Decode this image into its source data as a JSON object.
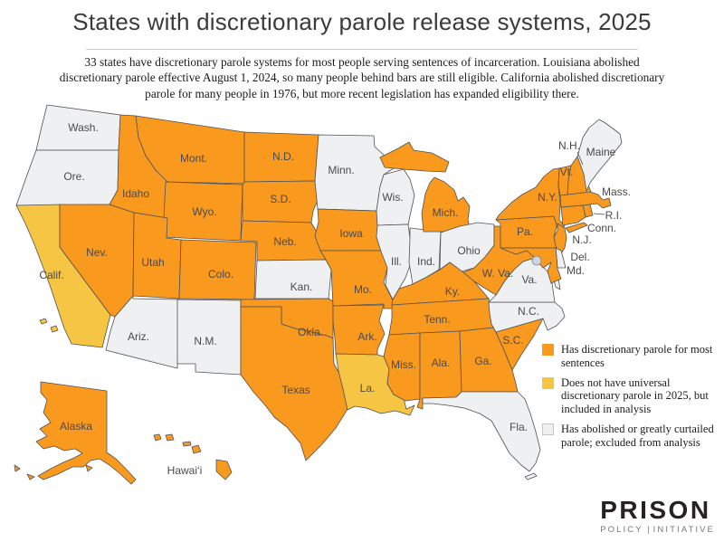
{
  "title": "States with discretionary parole release systems, 2025",
  "subtitle": "33 states have discretionary parole systems for most people serving sentences of incarceration. Louisiana abolished discretionary parole effective August 1, 2024, so many people behind bars are still eligible. California abolished discretionary parole for many people in 1976, but more recent legislation has expanded eligibility there.",
  "legend": {
    "items": [
      {
        "category": "parole",
        "color": "#F9991E",
        "label": "Has discretionary parole for most sentences"
      },
      {
        "category": "partial",
        "color": "#F6C544",
        "label": "Does not have universal discretionary parole in 2025, but included in analysis"
      },
      {
        "category": "excluded",
        "color": "#EFF0F1",
        "label": "Has abolished or greatly curtailed parole; excluded from analysis"
      }
    ]
  },
  "map": {
    "border_color": "#515154",
    "label_color": "#4a4a4c",
    "dc_fill": "#CBD5DB",
    "dc_stroke": "#7c8b96",
    "states": [
      {
        "id": "WA",
        "label": "Wash.",
        "category": "excluded"
      },
      {
        "id": "OR",
        "label": "Ore.",
        "category": "excluded"
      },
      {
        "id": "CA",
        "label": "Calif.",
        "category": "partial"
      },
      {
        "id": "NV",
        "label": "Nev.",
        "category": "parole"
      },
      {
        "id": "ID",
        "label": "Idaho",
        "category": "parole"
      },
      {
        "id": "MT",
        "label": "Mont.",
        "category": "parole"
      },
      {
        "id": "WY",
        "label": "Wyo.",
        "category": "parole"
      },
      {
        "id": "UT",
        "label": "Utah",
        "category": "parole"
      },
      {
        "id": "CO",
        "label": "Colo.",
        "category": "parole"
      },
      {
        "id": "AZ",
        "label": "Ariz.",
        "category": "excluded"
      },
      {
        "id": "NM",
        "label": "N.M.",
        "category": "excluded"
      },
      {
        "id": "ND",
        "label": "N.D.",
        "category": "parole"
      },
      {
        "id": "SD",
        "label": "S.D.",
        "category": "parole"
      },
      {
        "id": "NE",
        "label": "Neb.",
        "category": "parole"
      },
      {
        "id": "KS",
        "label": "Kan.",
        "category": "excluded"
      },
      {
        "id": "OK",
        "label": "Okla.",
        "category": "parole"
      },
      {
        "id": "TX",
        "label": "Texas",
        "category": "parole"
      },
      {
        "id": "MN",
        "label": "Minn.",
        "category": "excluded"
      },
      {
        "id": "IA",
        "label": "Iowa",
        "category": "parole"
      },
      {
        "id": "MO",
        "label": "Mo.",
        "category": "parole"
      },
      {
        "id": "AR",
        "label": "Ark.",
        "category": "parole"
      },
      {
        "id": "LA",
        "label": "La.",
        "category": "partial"
      },
      {
        "id": "WI",
        "label": "Wis.",
        "category": "excluded"
      },
      {
        "id": "IL",
        "label": "Ill.",
        "category": "excluded"
      },
      {
        "id": "IN",
        "label": "Ind.",
        "category": "excluded"
      },
      {
        "id": "MI",
        "label": "Mich.",
        "category": "parole"
      },
      {
        "id": "OH",
        "label": "Ohio",
        "category": "excluded"
      },
      {
        "id": "KY",
        "label": "Ky.",
        "category": "parole"
      },
      {
        "id": "TN",
        "label": "Tenn.",
        "category": "parole"
      },
      {
        "id": "MS",
        "label": "Miss.",
        "category": "parole"
      },
      {
        "id": "AL",
        "label": "Ala.",
        "category": "parole"
      },
      {
        "id": "GA",
        "label": "Ga.",
        "category": "parole"
      },
      {
        "id": "SC",
        "label": "S.C.",
        "category": "parole"
      },
      {
        "id": "NC",
        "label": "N.C.",
        "category": "excluded"
      },
      {
        "id": "FL",
        "label": "Fla.",
        "category": "excluded"
      },
      {
        "id": "VA",
        "label": "Va.",
        "category": "excluded"
      },
      {
        "id": "WV",
        "label": "W. Va.",
        "category": "parole"
      },
      {
        "id": "PA",
        "label": "Pa.",
        "category": "parole"
      },
      {
        "id": "NY",
        "label": "N.Y.",
        "category": "parole"
      },
      {
        "id": "VT",
        "label": "Vt.",
        "category": "parole"
      },
      {
        "id": "NH",
        "label": "N.H.",
        "category": "parole"
      },
      {
        "id": "ME",
        "label": "Maine",
        "category": "excluded"
      },
      {
        "id": "MA",
        "label": "Mass.",
        "category": "parole"
      },
      {
        "id": "RI",
        "label": "R.I.",
        "category": "parole"
      },
      {
        "id": "CT",
        "label": "Conn.",
        "category": "parole"
      },
      {
        "id": "NJ",
        "label": "N.J.",
        "category": "parole"
      },
      {
        "id": "DE",
        "label": "Del.",
        "category": "excluded"
      },
      {
        "id": "MD",
        "label": "Md.",
        "category": "parole"
      },
      {
        "id": "AK",
        "label": "Alaska",
        "category": "parole"
      },
      {
        "id": "HI",
        "label": "Hawai‘i",
        "category": "parole"
      },
      {
        "id": "DC",
        "label": "",
        "category": "excluded"
      }
    ]
  },
  "logo": {
    "name": "PRISON",
    "tagline_left": "POLICY",
    "tagline_right": "INITIATIVE"
  }
}
